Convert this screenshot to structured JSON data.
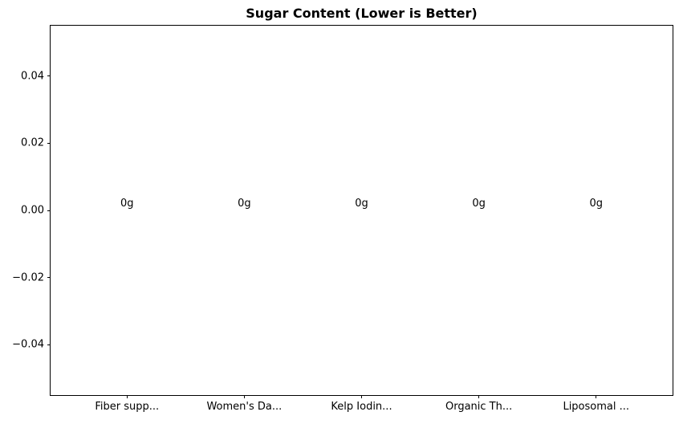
{
  "chart_data": {
    "type": "bar",
    "title": "Sugar Content (Lower is Better)",
    "categories": [
      "Fiber supp...",
      "Women's Da...",
      "Kelp Iodin...",
      "Organic Th...",
      "Liposomal ..."
    ],
    "values": [
      0,
      0,
      0,
      0,
      0
    ],
    "bar_labels": [
      "0g",
      "0g",
      "0g",
      "0g",
      "0g"
    ],
    "xlabel": "",
    "ylabel": "",
    "ylim": [
      -0.055,
      0.055
    ],
    "yticks": [
      0.04,
      0.02,
      0.0,
      -0.02,
      -0.04
    ],
    "ytick_labels": [
      "0.04",
      "0.02",
      "0.00",
      "−0.02",
      "−0.04"
    ],
    "grid": false,
    "legend": null
  },
  "colors": {
    "background": "#ffffff",
    "text": "#000000",
    "axis": "#000000"
  }
}
